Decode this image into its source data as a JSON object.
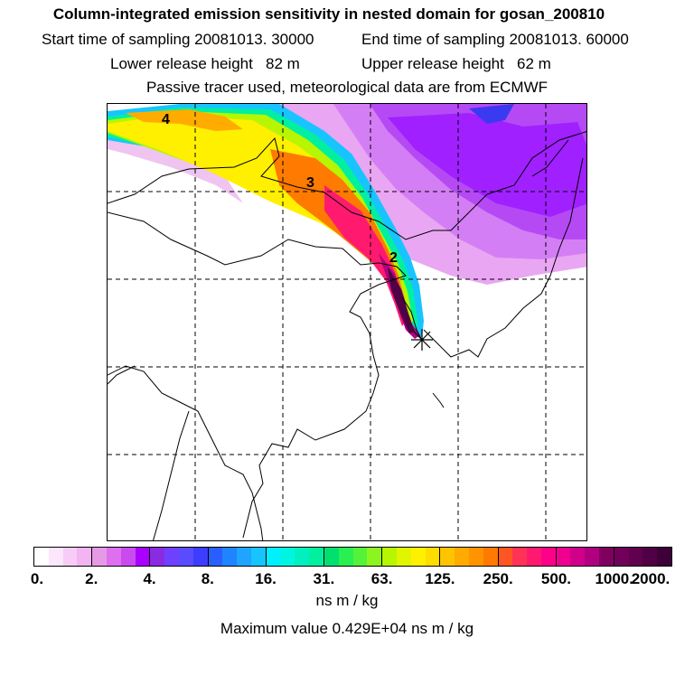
{
  "header": {
    "title": "Column-integrated emission sensitivity in nested domain for gosan_200810",
    "start_time": "Start time of sampling 20081013. 30000",
    "end_time": "End time of sampling 20081013. 60000",
    "lower_release": "Lower release height   82 m",
    "upper_release": "Upper release height   62 m",
    "tracer_note": "Passive tracer used, meteorological data are from ECMWF"
  },
  "map": {
    "day_labels": [
      "4",
      "3",
      "2"
    ],
    "receptor_marker": "gosan-receptor"
  },
  "colorbar": {
    "tick_labels": [
      "0.",
      "2.",
      "4.",
      "8.",
      "16.",
      "31.",
      "63.",
      "125.",
      "250.",
      "500.",
      "1000.",
      "2000."
    ],
    "units": "ns m / kg",
    "max_value": "Maximum value  0.429E+04 ns m / kg",
    "colors": [
      "#ffffff",
      "#fbe6fb",
      "#f7cdf7",
      "#f2b4f2",
      "#e69ae6",
      "#dd6ff0",
      "#c94bf0",
      "#aa00ff",
      "#8a2be2",
      "#7040ff",
      "#5a4bff",
      "#3d3dff",
      "#2a5fff",
      "#1f84ff",
      "#1fa5ff",
      "#18c4ff",
      "#00f0ff",
      "#00f5e0",
      "#00f0c0",
      "#00f09f",
      "#00e070",
      "#29f050",
      "#55f23a",
      "#8cf520",
      "#b8f500",
      "#e1f500",
      "#fff000",
      "#ffdd00",
      "#ffc400",
      "#ffab00",
      "#ff9400",
      "#ff7a00",
      "#ff5522",
      "#ff3355",
      "#ff1a70",
      "#ff0088",
      "#ef0090",
      "#d0008a",
      "#b0007f",
      "#800060",
      "#70005a",
      "#60004e",
      "#500045",
      "#3d0038"
    ]
  }
}
